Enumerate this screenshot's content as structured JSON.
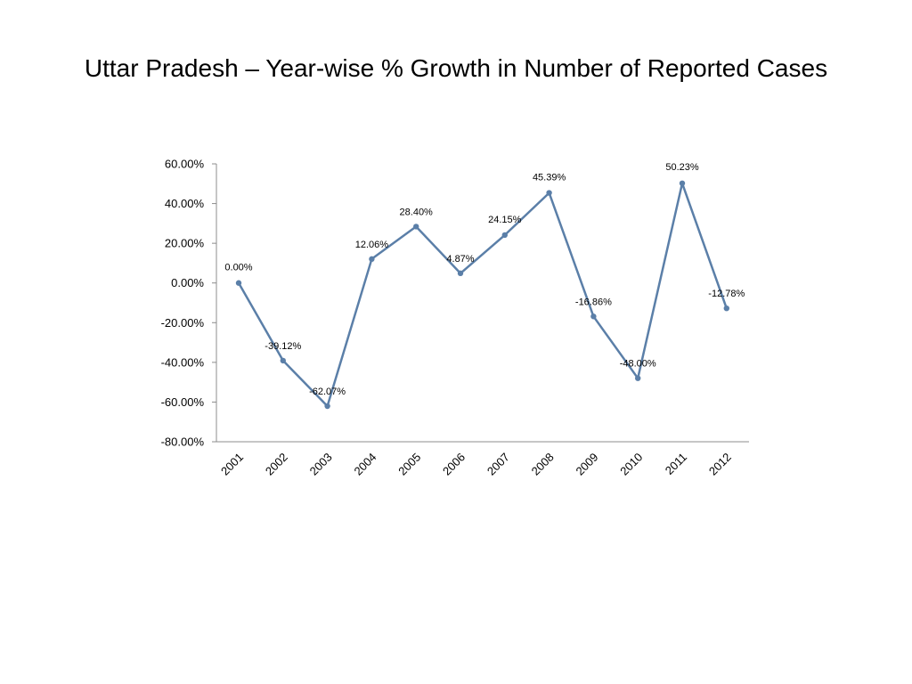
{
  "slide": {
    "title": "Uttar Pradesh – Year-wise % Growth in Number of Reported Cases"
  },
  "colors": {
    "series": "#5b7fa8",
    "axis": "#8c8c8c"
  },
  "chart_data": {
    "type": "line",
    "title": "",
    "xlabel": "",
    "ylabel": "",
    "categories": [
      "2001",
      "2002",
      "2003",
      "2004",
      "2005",
      "2006",
      "2007",
      "2008",
      "2009",
      "2010",
      "2011",
      "2012"
    ],
    "values": [
      0.0,
      -39.12,
      -62.07,
      12.06,
      28.4,
      4.87,
      24.15,
      45.39,
      -16.86,
      -48.0,
      50.23,
      -12.78
    ],
    "data_labels": [
      "0.00%",
      "-39.12%",
      "-62.07%",
      "12.06%",
      "28.40%",
      "4.87%",
      "24.15%",
      "45.39%",
      "-16.86%",
      "-48.00%",
      "50.23%",
      "-12.78%"
    ],
    "y_ticks": [
      60,
      40,
      20,
      0,
      -20,
      -40,
      -60,
      -80
    ],
    "y_tick_labels": [
      "60.00%",
      "40.00%",
      "20.00%",
      "0.00%",
      "-20.00%",
      "-40.00%",
      "-60.00%",
      "-80.00%"
    ],
    "ylim": [
      -80,
      60
    ],
    "grid": false,
    "legend": "none"
  }
}
